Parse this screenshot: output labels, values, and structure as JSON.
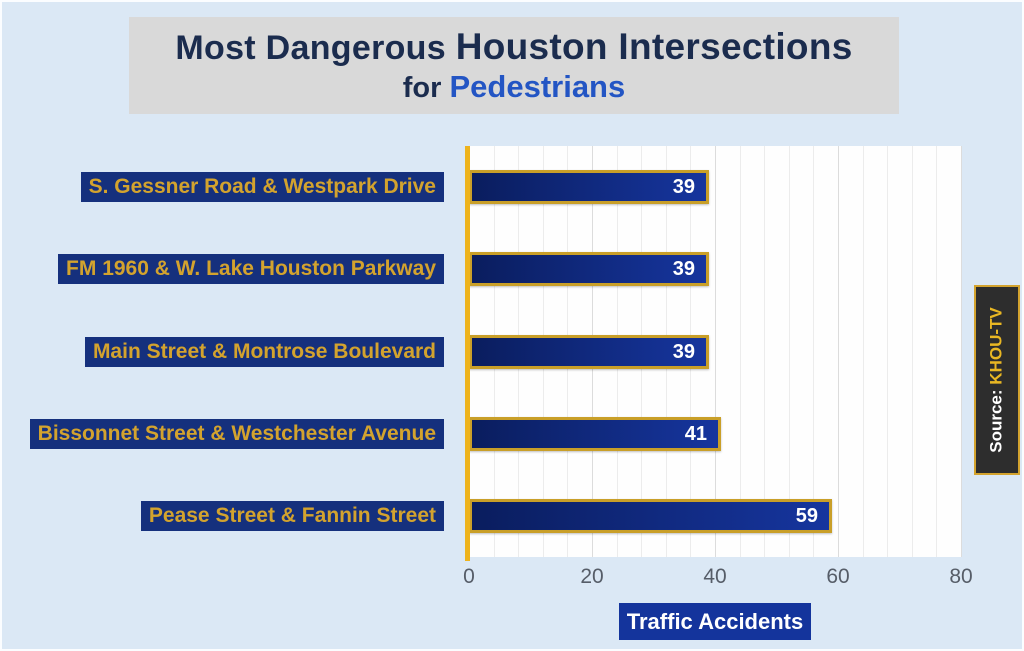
{
  "title": {
    "line1_part1": "Most Dangerous",
    "line1_part2": "Houston Intersections",
    "line2_part1": "for",
    "line2_part2": "Pedestrians"
  },
  "source_label": {
    "prefix": "Source:",
    "name": "KHOU-TV"
  },
  "chart_data": {
    "type": "bar",
    "orientation": "horizontal",
    "title": "Most Dangerous Houston Intersections for Pedestrians",
    "categories": [
      "S. Gessner Road & Westpark Drive",
      "FM 1960 & W. Lake Houston Parkway",
      "Main Street & Montrose Boulevard",
      "Bissonnet Street & Westchester Avenue",
      "Pease Street & Fannin Street"
    ],
    "values": [
      39,
      39,
      39,
      41,
      59
    ],
    "xlabel": "Traffic Accidents",
    "ylabel": "",
    "xlim": [
      0,
      80
    ],
    "x_ticks": [
      0,
      20,
      40,
      60,
      80
    ],
    "minor_grid_step": 4,
    "major_grid_step": 20,
    "grid": "vertical",
    "legend": "none",
    "source": "KHOU-TV"
  },
  "colors": {
    "canvas_bg": "#dbe8f5",
    "title_bg": "#d9d9d9",
    "title_dark": "#1b2c4e",
    "title_accent": "#2355c4",
    "label_bg": "#15307d",
    "label_text": "#d3a32e",
    "bar_fill_start": "#0a1d5e",
    "bar_fill_end": "#16359e",
    "bar_border": "#c99f28",
    "axis_line": "#eeb31c",
    "tick_text": "#565d68",
    "xlabel_bg": "#14349c",
    "xlabel_text": "#ffffff",
    "source_bg": "#2d2d2d",
    "source_border": "#d3a32e"
  }
}
